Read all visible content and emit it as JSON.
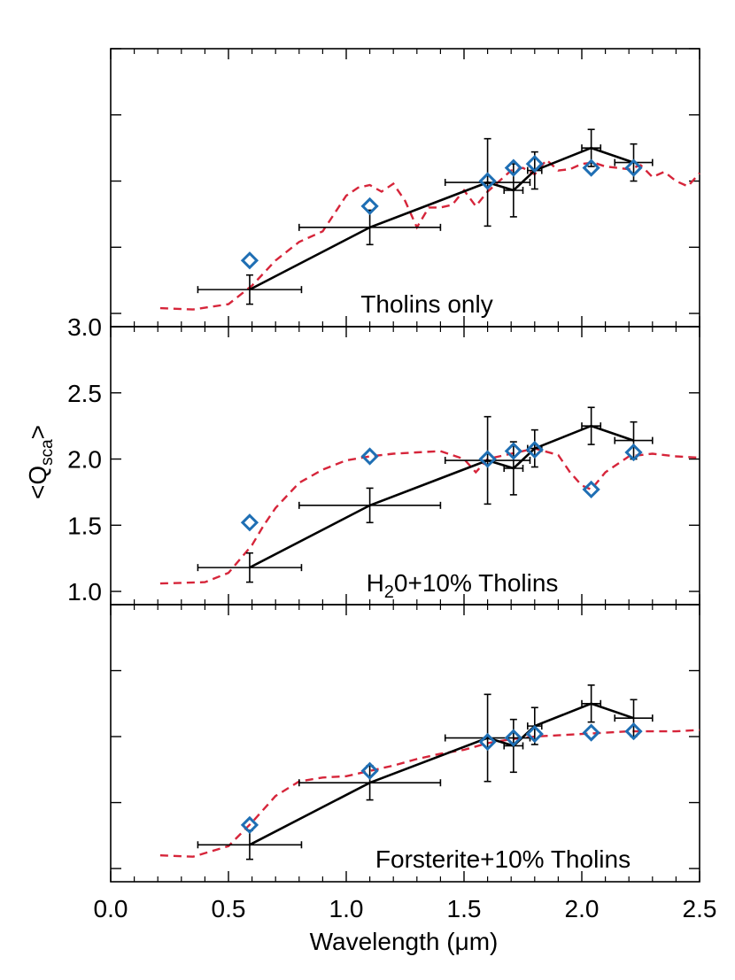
{
  "chart_data": [
    {
      "type": "line",
      "label": "Tholins only",
      "xlim": [
        0.0,
        2.5
      ],
      "ylim": [
        1.0,
        3.0
      ],
      "observed": {
        "x": [
          0.59,
          1.1,
          1.6,
          1.71,
          1.8,
          2.04,
          2.22
        ],
        "y": [
          1.18,
          1.65,
          1.99,
          1.93,
          2.08,
          2.25,
          2.14
        ],
        "y_err": [
          0.11,
          0.13,
          0.33,
          0.2,
          0.14,
          0.14,
          0.14
        ],
        "x_err": [
          0.22,
          0.3,
          0.18,
          0.04,
          0.03,
          0.04,
          0.08
        ]
      },
      "model_points": {
        "x": [
          0.59,
          1.1,
          1.6,
          1.71,
          1.8,
          2.04,
          2.22
        ],
        "y": [
          1.4,
          1.81,
          2.0,
          2.1,
          2.13,
          2.1,
          2.1
        ]
      },
      "model_curve": {
        "x": [
          0.21,
          0.35,
          0.5,
          0.6,
          0.7,
          0.8,
          0.9,
          1.0,
          1.05,
          1.1,
          1.15,
          1.2,
          1.25,
          1.3,
          1.35,
          1.4,
          1.45,
          1.5,
          1.55,
          1.6,
          1.65,
          1.7,
          1.75,
          1.8,
          1.85,
          1.9,
          1.95,
          2.0,
          2.05,
          2.1,
          2.15,
          2.2,
          2.25,
          2.3,
          2.35,
          2.4,
          2.45,
          2.5
        ],
        "y": [
          1.04,
          1.03,
          1.07,
          1.21,
          1.4,
          1.54,
          1.62,
          1.89,
          1.95,
          1.97,
          1.92,
          1.98,
          1.85,
          1.65,
          1.8,
          1.8,
          1.82,
          1.93,
          1.81,
          1.92,
          2.0,
          2.08,
          2.1,
          2.05,
          2.16,
          2.08,
          2.09,
          2.13,
          2.14,
          2.11,
          2.1,
          2.09,
          2.12,
          2.03,
          2.07,
          2.0,
          1.96,
          2.06
        ]
      }
    },
    {
      "type": "line",
      "label_main": "H",
      "label_sub": "2",
      "label_rest": "0+10% Tholins",
      "ylabel_main": "<Q",
      "ylabel_sub": "sca",
      "ylabel_end": ">",
      "xlim": [
        0.0,
        2.5
      ],
      "ylim": [
        1.0,
        3.0
      ],
      "yticks": [
        "1.0",
        "1.5",
        "2.0",
        "2.5",
        "3.0"
      ],
      "observed": {
        "x": [
          0.59,
          1.1,
          1.6,
          1.71,
          1.8,
          2.04,
          2.22
        ],
        "y": [
          1.18,
          1.65,
          1.99,
          1.93,
          2.08,
          2.25,
          2.14
        ],
        "y_err": [
          0.11,
          0.13,
          0.33,
          0.2,
          0.14,
          0.14,
          0.14
        ],
        "x_err": [
          0.22,
          0.3,
          0.18,
          0.04,
          0.03,
          0.04,
          0.08
        ]
      },
      "model_points": {
        "x": [
          0.59,
          1.1,
          1.6,
          1.71,
          1.8,
          2.04,
          2.22
        ],
        "y": [
          1.52,
          2.02,
          2.0,
          2.06,
          2.07,
          1.77,
          2.05
        ]
      },
      "model_curve": {
        "x": [
          0.21,
          0.4,
          0.5,
          0.6,
          0.65,
          0.7,
          0.8,
          0.9,
          1.0,
          1.1,
          1.2,
          1.3,
          1.4,
          1.5,
          1.55,
          1.6,
          1.7,
          1.8,
          1.9,
          1.95,
          2.0,
          2.04,
          2.1,
          2.2,
          2.3,
          2.4,
          2.5
        ],
        "y": [
          1.06,
          1.07,
          1.14,
          1.35,
          1.5,
          1.63,
          1.82,
          1.92,
          1.99,
          2.02,
          2.04,
          2.05,
          2.06,
          2.0,
          1.9,
          2.0,
          2.04,
          2.08,
          2.03,
          1.9,
          1.8,
          1.77,
          1.9,
          2.02,
          2.04,
          2.02,
          2.01
        ]
      }
    },
    {
      "type": "line",
      "label": "Forsterite+10% Tholins",
      "xlabel": "Wavelength (μm)",
      "xticks": [
        "0.0",
        "0.5",
        "1.0",
        "1.5",
        "2.0",
        "2.5"
      ],
      "xlim": [
        0.0,
        2.5
      ],
      "ylim": [
        1.0,
        3.0
      ],
      "observed": {
        "x": [
          0.59,
          1.1,
          1.6,
          1.71,
          1.8,
          2.04,
          2.22
        ],
        "y": [
          1.18,
          1.65,
          1.99,
          1.93,
          2.08,
          2.25,
          2.14
        ],
        "y_err": [
          0.11,
          0.13,
          0.33,
          0.2,
          0.14,
          0.14,
          0.14
        ],
        "x_err": [
          0.22,
          0.3,
          0.18,
          0.04,
          0.03,
          0.04,
          0.08
        ]
      },
      "model_points": {
        "x": [
          0.59,
          1.1,
          1.6,
          1.71,
          1.8,
          2.04,
          2.22
        ],
        "y": [
          1.33,
          1.74,
          1.96,
          1.99,
          2.02,
          2.03,
          2.04
        ]
      },
      "model_curve": {
        "x": [
          0.21,
          0.35,
          0.5,
          0.6,
          0.7,
          0.8,
          0.9,
          1.0,
          1.1,
          1.2,
          1.3,
          1.4,
          1.5,
          1.6,
          1.7,
          1.8,
          1.9,
          2.0,
          2.1,
          2.2,
          2.3,
          2.4,
          2.5
        ],
        "y": [
          1.1,
          1.09,
          1.17,
          1.35,
          1.55,
          1.66,
          1.69,
          1.7,
          1.74,
          1.78,
          1.83,
          1.87,
          1.9,
          1.95,
          1.98,
          2.0,
          2.01,
          2.02,
          2.03,
          2.04,
          2.04,
          2.04,
          2.05
        ]
      }
    }
  ],
  "colors": {
    "observed": "#000000",
    "model_points": "#1f6fb4",
    "model_curve": "#d6253a"
  }
}
